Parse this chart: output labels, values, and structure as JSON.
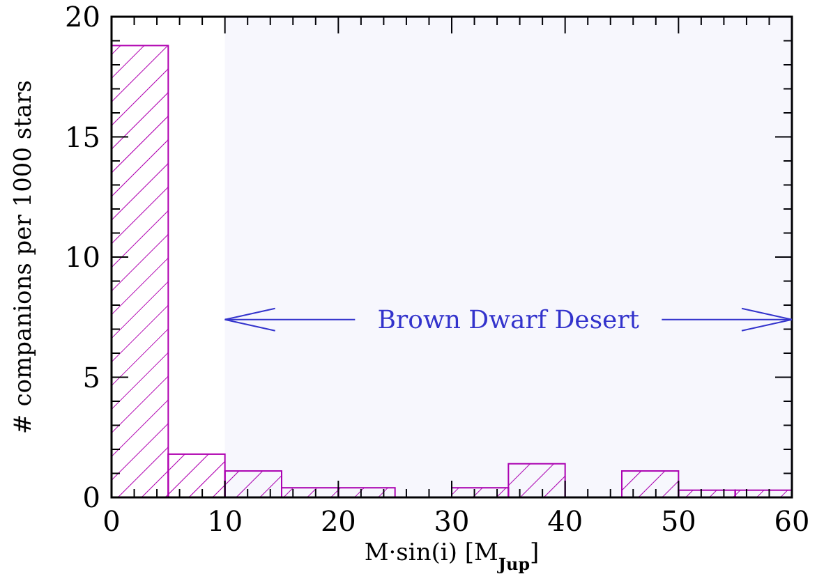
{
  "chart_data": {
    "type": "histogram",
    "xlabel": "M·sin(i) [M$_{Jup}$]",
    "ylabel": "# companions per 1000 stars",
    "bins": [
      0,
      5,
      10,
      15,
      20,
      25,
      30,
      35,
      40,
      45,
      50,
      55,
      60
    ],
    "values": [
      18.8,
      1.8,
      1.1,
      0.4,
      0.4,
      0,
      0.4,
      1.4,
      0,
      1.1,
      0.3,
      0.3
    ],
    "color": "#b000b0",
    "xlim": [
      0,
      60
    ],
    "ylim": [
      0,
      20
    ],
    "xticks": [
      0,
      {
        "value": 2,
        "label": null
      },
      {
        "value": 4,
        "label": null
      },
      {
        "value": 6,
        "label": null
      },
      {
        "value": 8,
        "label": null
      },
      10,
      {
        "value": 12,
        "label": null
      },
      {
        "value": 14,
        "label": null
      },
      {
        "value": 16,
        "label": null
      },
      {
        "value": 18,
        "label": null
      },
      20,
      {
        "value": 22,
        "label": null
      },
      {
        "value": 24,
        "label": null
      },
      {
        "value": 26,
        "label": null
      },
      {
        "value": 28,
        "label": null
      },
      30,
      {
        "value": 32,
        "label": null
      },
      {
        "value": 34,
        "label": null
      },
      {
        "value": 36,
        "label": null
      },
      {
        "value": 38,
        "label": null
      },
      40,
      {
        "value": 42,
        "label": null
      },
      {
        "value": 44,
        "label": null
      },
      {
        "value": 46,
        "label": null
      },
      {
        "value": 48,
        "label": null
      },
      50,
      {
        "value": 52,
        "label": null
      },
      {
        "value": 54,
        "label": null
      },
      {
        "value": 56,
        "label": null
      },
      {
        "value": 58,
        "label": null
      },
      60
    ],
    "yticks": [
      0,
      {
        "value": 1,
        "label": null
      },
      {
        "value": 2,
        "label": null
      },
      {
        "value": 3,
        "label": null
      },
      {
        "value": 4,
        "label": null
      },
      5,
      {
        "value": 6,
        "label": null
      },
      {
        "value": 7,
        "label": null
      },
      {
        "value": 8,
        "label": null
      },
      {
        "value": 9,
        "label": null
      },
      10,
      {
        "value": 11,
        "label": null
      },
      {
        "value": 12,
        "label": null
      },
      {
        "value": 13,
        "label": null
      },
      {
        "value": 14,
        "label": null
      },
      15,
      {
        "value": 16,
        "label": null
      },
      {
        "value": 17,
        "label": null
      },
      {
        "value": 18,
        "label": null
      },
      {
        "value": 19,
        "label": null
      },
      20
    ],
    "bands": [
      {
        "axis": "x",
        "from": 10,
        "to": 60,
        "label": "Brown Dwarf Desert",
        "color": "#3333cc"
      }
    ]
  }
}
